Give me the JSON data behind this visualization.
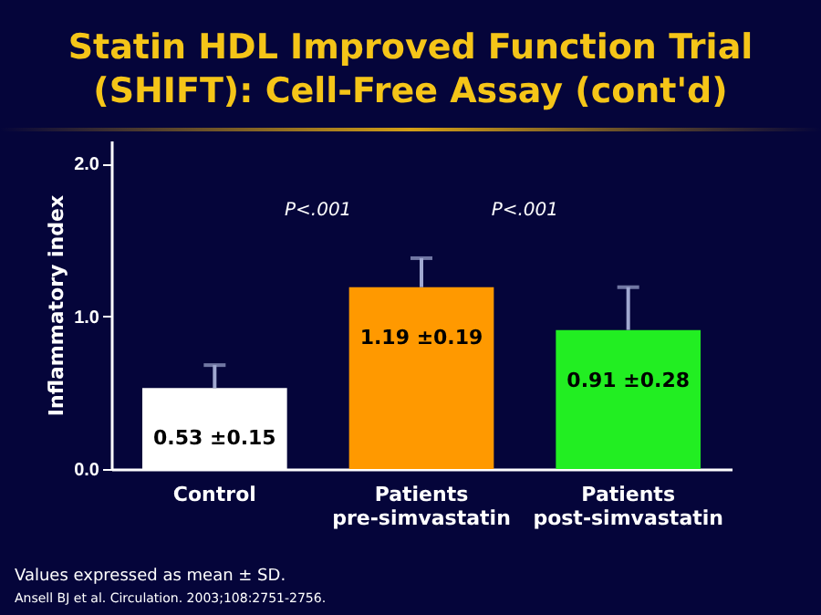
{
  "chart_data": {
    "type": "bar",
    "title": "Statin HDL Improved Function Trial (SHIFT): Cell-Free Assay (cont'd)",
    "ylabel": "Inflammatory index",
    "categories": [
      "Control",
      "Patients pre-simvastatin",
      "Patients post-simvastatin"
    ],
    "values": [
      0.53,
      1.19,
      0.91
    ],
    "colors": [
      "#ffffff",
      "#ff9900",
      "#22ee22"
    ],
    "errors": [
      [
        0.53,
        0.68
      ],
      [
        1.19,
        1.38
      ],
      [
        0.91,
        1.19
      ]
    ],
    "value_labels": [
      "0.53 ±0.15",
      "1.19 ±0.19",
      "0.91 ±0.28"
    ],
    "ylim": [
      0,
      2.15
    ],
    "yticks": [
      {
        "value": 0,
        "label": "0.0"
      },
      {
        "value": 1,
        "label": "1.0"
      },
      {
        "value": 2,
        "label": "2.0"
      }
    ],
    "grid": false,
    "legend": false,
    "annotations": [
      "P<.001",
      "P<.001",
      "Values expressed as mean ± SD.",
      "Ansell BJ et al. Circulation. 2003;108:2751-2756."
    ]
  }
}
